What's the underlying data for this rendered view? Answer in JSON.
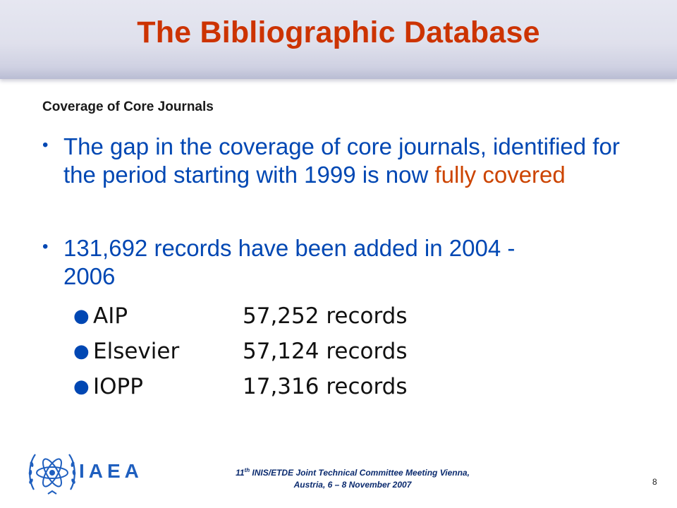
{
  "slide": {
    "title": "The Bibliographic Database",
    "subtitle": "Coverage of Core Journals",
    "bullet1": {
      "text": "The gap in the coverage of core journals, identified for the period starting with 1999 is now ",
      "highlight": "fully covered"
    },
    "bullet2": {
      "text": "131,692 records have been added in 2004 - 2006"
    },
    "sub_items": [
      {
        "name": "AIP",
        "count": "57,252 records"
      },
      {
        "name": "Elsevier",
        "count": "57,124 records"
      },
      {
        "name": "IOPP",
        "count": "17,316 records"
      }
    ]
  },
  "footer": {
    "logo_text": "IAEA",
    "number": "11",
    "ordinal": "th",
    "line1_rest": " INIS/ETDE Joint Technical Committee Meeting Vienna,",
    "line2": "Austria, 6 – 8 November 2007",
    "page_number": "8"
  },
  "colors": {
    "title": "#cc3300",
    "body_text": "#0047b3",
    "highlight": "#cc4400",
    "logo": "#1f5fbf"
  },
  "icons": {
    "logo": "iaea-atom-olive-wreath-icon",
    "bullet": "bullet-dot-icon"
  }
}
